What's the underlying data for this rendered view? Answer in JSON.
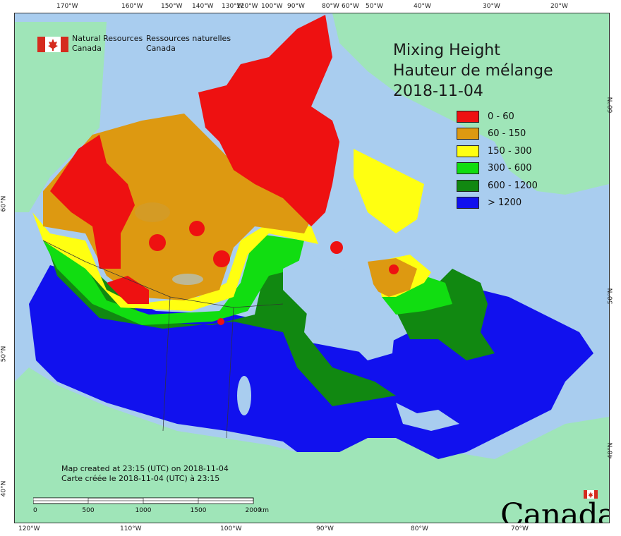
{
  "agency": {
    "en_line1": "Natural Resources",
    "en_line2": "Canada",
    "fr_line1": "Ressources naturelles",
    "fr_line2": "Canada"
  },
  "title": {
    "line1": "Mixing Height",
    "line2": "Hauteur de mélange",
    "date": "2018-11-04"
  },
  "legend": [
    {
      "label": "0 - 60",
      "color": "#ee1111"
    },
    {
      "label": "60 - 150",
      "color": "#dd9911"
    },
    {
      "label": "150 - 300",
      "color": "#ffff11"
    },
    {
      "label": "300 - 600",
      "color": "#11dd11"
    },
    {
      "label": "600 - 1200",
      "color": "#118811"
    },
    {
      "label": "> 1200",
      "color": "#1111ee"
    }
  ],
  "created": {
    "en": "Map created at 23:15 (UTC) on 2018-11-04",
    "fr": "Carte créée le 2018-11-04 (UTC) à 23:15"
  },
  "scale": {
    "labels": [
      "0",
      "500",
      "1000",
      "1500",
      "2000"
    ],
    "unit": "km"
  },
  "wordmark": "Canada",
  "graticule": {
    "top": [
      "170°W",
      "160°W",
      "150°W",
      "140°W",
      "130°W",
      "120°W",
      "100°W",
      "90°W",
      "80°W",
      "60°W",
      "50°W",
      "40°W",
      "30°W",
      "20°W"
    ],
    "bottom": [
      "120°W",
      "110°W",
      "100°W",
      "90°W",
      "80°W",
      "70°W"
    ],
    "left": [
      "60°N",
      "50°N",
      "40°N"
    ],
    "right": [
      "60°N",
      "50°N",
      "40°N"
    ]
  },
  "colors": {
    "ocean": "#a9cdef",
    "land": "#9fe5b8",
    "lake": "#a9cdef"
  }
}
